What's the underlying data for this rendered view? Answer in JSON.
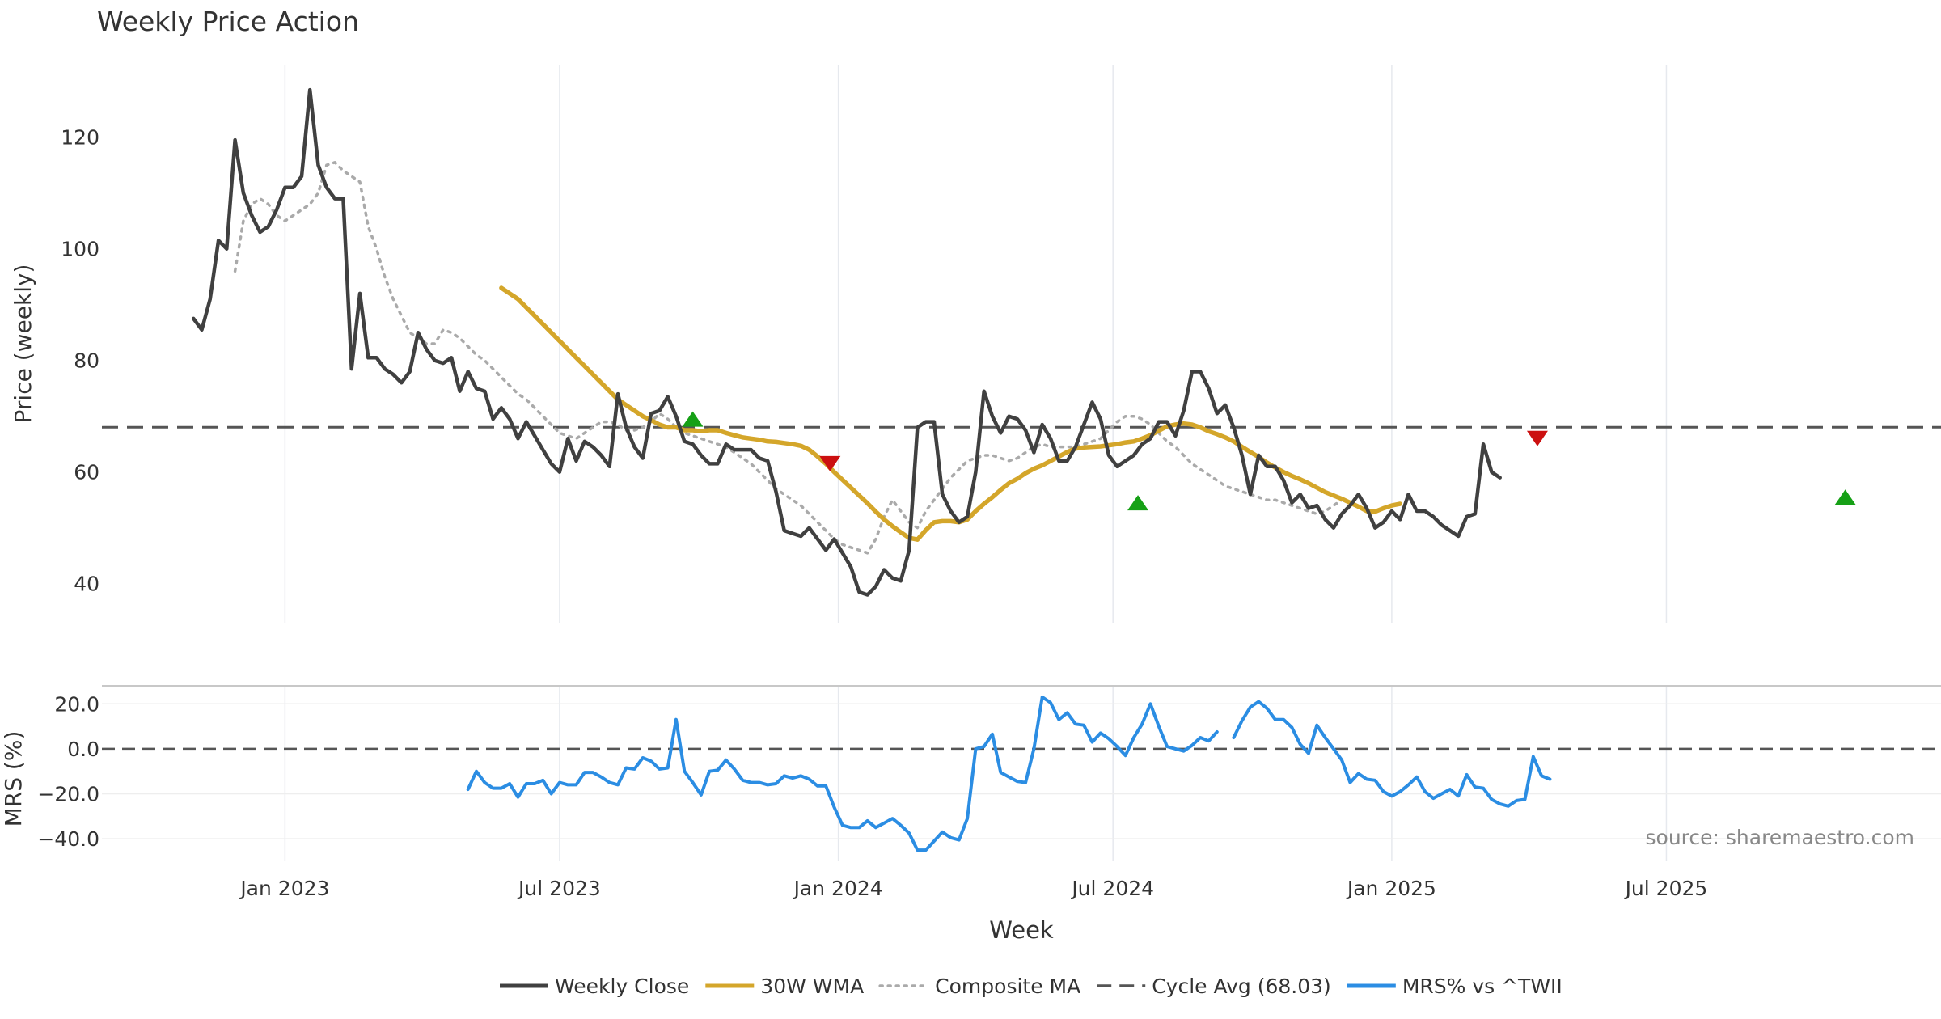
{
  "title": "Weekly Price Action",
  "source": "source: sharemaestro.com",
  "colors": {
    "close": "#404040",
    "wma": "#d4a62a",
    "composite": "#aaaaaa",
    "cycle": "#555555",
    "mrs": "#2b8de3",
    "buy": "#16a016",
    "sell": "#cc1010",
    "grid": "#e6e9ee",
    "text": "#333333"
  },
  "legend": [
    {
      "label": "Weekly Close",
      "key": "close",
      "style": "solid"
    },
    {
      "label": "30W WMA",
      "key": "wma",
      "style": "solid"
    },
    {
      "label": "Composite MA",
      "key": "composite",
      "style": "dotted"
    },
    {
      "label": "Cycle Avg (68.03)",
      "key": "cycle",
      "style": "dashed"
    },
    {
      "label": "MRS% vs ^TWII",
      "key": "mrs",
      "style": "solid"
    }
  ],
  "chart_data": [
    {
      "type": "line",
      "title": "Weekly Price Action",
      "ylabel": "Price (weekly)",
      "xlabel": "Week",
      "xlim": [
        -11,
        210
      ],
      "ylim": [
        33,
        133
      ],
      "yticks": [
        40,
        60,
        80,
        100,
        120
      ],
      "xticks": [
        {
          "label": "Jan 2023",
          "x": 11
        },
        {
          "label": "Jul 2023",
          "x": 44
        },
        {
          "label": "Jan 2024",
          "x": 77.5
        },
        {
          "label": "Jul 2024",
          "x": 110.5
        },
        {
          "label": "Jan 2025",
          "x": 144
        },
        {
          "label": "Jul 2025",
          "x": 177
        }
      ],
      "cycle_avg": 68.03,
      "series": [
        {
          "name": "Weekly Close",
          "key": "close",
          "x0": 0,
          "values": [
            87.5,
            85.5,
            91,
            101.5,
            100,
            119.5,
            110,
            106,
            103,
            104,
            107,
            111,
            111,
            113,
            128.5,
            115,
            111,
            109,
            109,
            78.5,
            92,
            80.5,
            80.5,
            78.5,
            77.5,
            76,
            78,
            85,
            82,
            80,
            79.5,
            80.5,
            74.5,
            78,
            75,
            74.5,
            69.5,
            71.5,
            69.5,
            66,
            69,
            66.5,
            64,
            61.5,
            60,
            66,
            62,
            65.5,
            64.5,
            63,
            61,
            74,
            68,
            64.5,
            62.5,
            70.5,
            71,
            73.5,
            70,
            65.5,
            65,
            63,
            61.5,
            61.5,
            65,
            64,
            64,
            64,
            62.5,
            62,
            56.5,
            49.5,
            49,
            48.5,
            50,
            48,
            46,
            48,
            45.5,
            43,
            38.5,
            38,
            39.5,
            42.5,
            41,
            40.5,
            46,
            68,
            69,
            69,
            56,
            53,
            51,
            52,
            60,
            74.5,
            70,
            67,
            70,
            69.5,
            67.5,
            63.5,
            68.5,
            66,
            62,
            62,
            64.5,
            68.5,
            72.5,
            69.5,
            63,
            61,
            62,
            63,
            65,
            66,
            69,
            69,
            66.5,
            71,
            78,
            78,
            75,
            70.5,
            72,
            68,
            63,
            56,
            63,
            61,
            61,
            58.5,
            54.5,
            56,
            53.5,
            54,
            51.5,
            50,
            52.5,
            54,
            56,
            53.5,
            50,
            51,
            53,
            51.5,
            56,
            53,
            53,
            52,
            50.5,
            49.5,
            48.5,
            52,
            52.5,
            65,
            60,
            59
          ]
        },
        {
          "name": "30W WMA",
          "key": "wma",
          "x0": 37,
          "values": [
            93,
            92,
            91,
            89.5,
            88,
            86.5,
            85,
            83.5,
            82,
            80.5,
            79,
            77.5,
            76,
            74.5,
            73,
            72,
            71,
            70,
            69.3,
            68.5,
            68,
            68,
            67.5,
            67.5,
            67.3,
            67.5,
            67.5,
            67,
            66.6,
            66.2,
            66,
            65.8,
            65.5,
            65.4,
            65.2,
            65,
            64.7,
            64,
            62.8,
            61.5,
            60,
            58.6,
            57.2,
            55.8,
            54.4,
            52.9,
            51.5,
            50.3,
            49.2,
            48.2,
            47.9,
            49.6,
            51,
            51.2,
            51.2,
            51,
            51.5,
            53,
            54.3,
            55.5,
            56.8,
            58,
            58.8,
            59.8,
            60.6,
            61.2,
            62,
            62.8,
            63.6,
            64.2,
            64.4,
            64.5,
            64.6,
            64.8,
            65,
            65.3,
            65.5,
            66,
            66.6,
            67.4,
            68.2,
            68.5,
            68.7,
            68.5,
            68,
            67.3,
            66.8,
            66.2,
            65.5,
            64.5,
            63.6,
            62.7,
            61.7,
            60.8,
            60,
            59.3,
            58.7,
            58,
            57.2,
            56.4,
            55.8,
            55.2,
            54.5,
            53.8,
            53,
            52.9,
            53.5,
            54,
            54.3
          ]
        },
        {
          "name": "Composite MA",
          "key": "composite",
          "x0": 5,
          "values": [
            96,
            105,
            108,
            109,
            108,
            106,
            105,
            106,
            107,
            108,
            110,
            115,
            115.5,
            114,
            113,
            112,
            104,
            100,
            95,
            91,
            88,
            85,
            84,
            83,
            83,
            85.5,
            85,
            84,
            82.5,
            81,
            80,
            78.5,
            77,
            75.5,
            74,
            73,
            71.5,
            70,
            68.5,
            67,
            66.5,
            66,
            67,
            68,
            69,
            69,
            68.5,
            67.5,
            67.5,
            68,
            69,
            70.5,
            69.5,
            68,
            67,
            66.5,
            66,
            65.5,
            65,
            64.5,
            63.5,
            62.5,
            61.5,
            60,
            58.5,
            57,
            56,
            55,
            54,
            52.5,
            51,
            49.5,
            48,
            47,
            46.5,
            46,
            45.5,
            48,
            52,
            55,
            53,
            51,
            50,
            53,
            55,
            57,
            59,
            60.5,
            62,
            62.5,
            63,
            63,
            62.5,
            62,
            62.5,
            63.5,
            64.5,
            65,
            64.5,
            64.5,
            64.5,
            64.5,
            65,
            65.5,
            66,
            67.5,
            69,
            70,
            70,
            69.5,
            68.5,
            67,
            65.5,
            64.5,
            63,
            61.5,
            60.5,
            59.5,
            58.5,
            57.5,
            57,
            56.5,
            56,
            55.5,
            55,
            55,
            54.5,
            54,
            53.5,
            53,
            52.5,
            53,
            54,
            55
          ]
        },
        {
          "name": "MRS% vs ^TWII",
          "key": "mrs",
          "x0": 33,
          "values": [
            -18,
            -10,
            -15,
            -17.5,
            -17.5,
            -15.5,
            -21.5,
            -15.5,
            -15.5,
            -14,
            -20,
            -15,
            -16,
            -16,
            -10.5,
            -10.5,
            -12.5,
            -15,
            -16,
            -8.5,
            -9,
            -4,
            -5.5,
            -9,
            -8.5,
            13,
            -10,
            -15,
            -20.5,
            -10,
            -9.5,
            -5,
            -9,
            -14,
            -15,
            -15,
            -16,
            -15.5,
            -12,
            -13,
            -12,
            -13.5,
            -16.5,
            -16.5,
            -26,
            -34,
            -35,
            -35,
            -32,
            -35,
            -33,
            -31,
            -34,
            -37.5,
            -45,
            -45,
            -41,
            -37,
            -39.5,
            -40.5,
            -31,
            0,
            1,
            6.5,
            -10.5,
            -12.5,
            -14.5,
            -15,
            0,
            23,
            20.5,
            13,
            16,
            11,
            10.5,
            3,
            7,
            4.5,
            1,
            -3,
            5,
            11,
            20,
            10,
            1,
            0,
            -1,
            1.5,
            5,
            3.5,
            7.5,
            null,
            5,
            12.5,
            18.5,
            21,
            18,
            13,
            13,
            9.5,
            2,
            -2,
            10.5,
            5,
            0,
            -5,
            -15,
            -11,
            -13.5,
            -14,
            -19,
            -21,
            -19,
            -16,
            -12.5,
            -19,
            -22,
            -20,
            -18,
            -21,
            -11.5,
            -17,
            -17.5,
            -22.5,
            -24.5,
            -25.5,
            -23,
            -22.5,
            -3.5,
            -12,
            -13.5
          ]
        }
      ],
      "signals": [
        {
          "type": "buy",
          "x": 60,
          "y": 69.5
        },
        {
          "type": "sell",
          "x": 76.5,
          "y": 61.5
        },
        {
          "type": "buy",
          "x": 113.5,
          "y": 54.5
        },
        {
          "type": "sell",
          "x": 161.5,
          "y": 66
        },
        {
          "type": "buy",
          "x": 198.5,
          "y": 55.5
        }
      ]
    },
    {
      "type": "line",
      "ylabel": "MRS (%)",
      "xlim": [
        -11,
        210
      ],
      "ylim": [
        -50,
        28
      ],
      "yticks": [
        20,
        0,
        -20,
        -40
      ],
      "ytick_labels": [
        "20.0",
        "0.0",
        "−20.0",
        "−40.0"
      ],
      "zero_line": 0
    }
  ]
}
